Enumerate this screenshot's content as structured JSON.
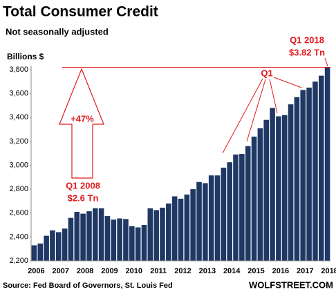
{
  "chart_data": {
    "type": "bar",
    "title": "Total Consumer Credit",
    "subtitle": "Not seasonally adjusted",
    "y_label": "Billions $",
    "source": "Source: Fed Board of Governors, St. Louis Fed",
    "brand": "WOLFSTREET.COM",
    "annotations": {
      "start": "Q1 2008",
      "start_value": "$2.6 Tn",
      "end": "Q1 2018",
      "end_value": "$3.82 Tn",
      "change": "+47%",
      "q1": "Q1"
    },
    "color": "#1f3864",
    "categories": [
      "2006",
      null,
      null,
      null,
      "2007",
      null,
      null,
      null,
      "2008",
      null,
      null,
      null,
      "2009",
      null,
      null,
      null,
      "2010",
      null,
      null,
      null,
      "2011",
      null,
      null,
      null,
      "2012",
      null,
      null,
      null,
      "2013",
      null,
      null,
      null,
      "2014",
      null,
      null,
      null,
      "2015",
      null,
      null,
      null,
      "2016",
      null,
      null,
      null,
      "2017",
      null,
      null,
      null,
      "2018"
    ],
    "values": [
      2330,
      2345,
      2410,
      2455,
      2440,
      2470,
      2560,
      2610,
      2595,
      2615,
      2640,
      2640,
      2575,
      2545,
      2555,
      2550,
      2490,
      2480,
      2500,
      2640,
      2625,
      2645,
      2680,
      2740,
      2720,
      2755,
      2800,
      2860,
      2850,
      2915,
      2915,
      2980,
      3025,
      3090,
      3095,
      3160,
      3240,
      3310,
      3380,
      3480,
      3410,
      3420,
      3510,
      3570,
      3630,
      3650,
      3700,
      3750,
      3820
    ],
    "ylim": [
      2200,
      3800
    ],
    "yticks": [
      {
        "value": 2200,
        "label": "2,200"
      },
      {
        "value": 2400,
        "label": "2,400"
      },
      {
        "value": 2600,
        "label": "2,600"
      },
      {
        "value": 2800,
        "label": "2,800"
      },
      {
        "value": 3000,
        "label": "3,000"
      },
      {
        "value": 3200,
        "label": "3,200"
      },
      {
        "value": 3400,
        "label": "3,400"
      },
      {
        "value": 3600,
        "label": "3,600"
      },
      {
        "value": 3800,
        "label": "3,800"
      }
    ],
    "grid": false
  }
}
